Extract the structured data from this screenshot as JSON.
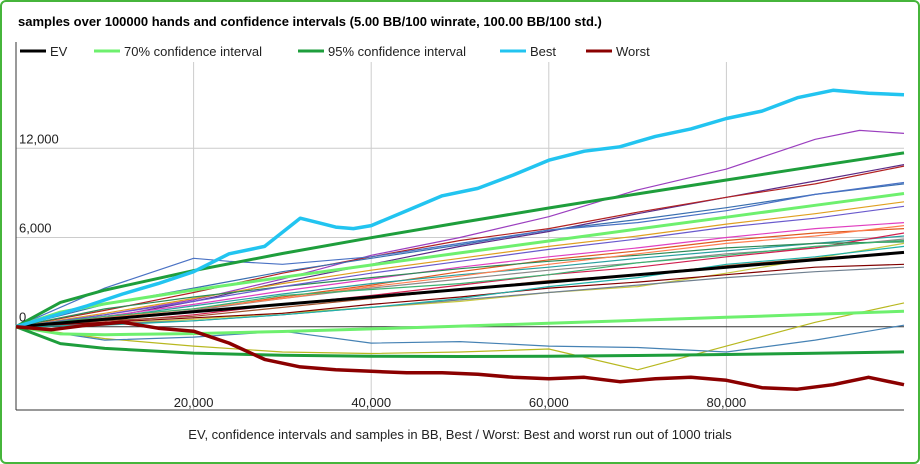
{
  "chart_data": {
    "type": "line",
    "title": "samples over 100000 hands and confidence intervals (5.00 BB/100 winrate, 100.00 BB/100 std.)",
    "caption": "EV, confidence intervals and samples in BB, Best / Worst: Best and worst run out of 1000 trials",
    "xlim": [
      0,
      100000
    ],
    "ylim": [
      -5600,
      17800
    ],
    "x_ticks": [
      {
        "value": 20000,
        "label": "20,000"
      },
      {
        "value": 40000,
        "label": "40,000"
      },
      {
        "value": 60000,
        "label": "60,000"
      },
      {
        "value": 80000,
        "label": "80,000"
      }
    ],
    "y_ticks": [
      {
        "value": 0,
        "label": "0"
      },
      {
        "value": 6000,
        "label": "6,000"
      },
      {
        "value": 12000,
        "label": "12,000"
      }
    ],
    "legend_position": "top",
    "legend": [
      {
        "label": "EV",
        "color": "#000000"
      },
      {
        "label": "70% confidence interval",
        "color": "#6ef06e"
      },
      {
        "label": "95% confidence interval",
        "color": "#1e9e3c"
      },
      {
        "label": "Best",
        "color": "#22c4f0"
      },
      {
        "label": "Worst",
        "color": "#8b0000"
      }
    ],
    "series": [
      {
        "name": "EV",
        "color": "#000000",
        "width": 3,
        "x": [
          0,
          10000,
          20000,
          30000,
          40000,
          50000,
          60000,
          70000,
          80000,
          90000,
          100000
        ],
        "y": [
          0,
          500,
          1000,
          1500,
          2000,
          2500,
          3000,
          3500,
          4000,
          4500,
          5000
        ]
      },
      {
        "name": "70% confidence interval",
        "color": "#6ef06e",
        "width": 3,
        "x": [
          0,
          5000,
          10000,
          20000,
          30000,
          40000,
          50000,
          60000,
          70000,
          80000,
          90000,
          100000
        ],
        "y": [
          0,
          984,
          1537,
          2466,
          3322,
          4148,
          4961,
          5767,
          6568,
          7367,
          8164,
          8960
        ]
      },
      {
        "name": "70% confidence interval",
        "color": "#6ef06e",
        "width": 3,
        "x": [
          0,
          5000,
          10000,
          20000,
          30000,
          40000,
          50000,
          60000,
          70000,
          80000,
          90000,
          100000
        ],
        "y": [
          0,
          -484,
          -537,
          -466,
          -322,
          -148,
          39,
          233,
          432,
          633,
          836,
          1040
        ]
      },
      {
        "name": "95% confidence interval",
        "color": "#1e9e3c",
        "width": 3,
        "x": [
          0,
          5000,
          10000,
          20000,
          30000,
          40000,
          50000,
          60000,
          70000,
          80000,
          90000,
          100000
        ],
        "y": [
          0,
          1636,
          2460,
          3771,
          4920,
          5985,
          7001,
          7980,
          8933,
          9865,
          10785,
          11690
        ]
      },
      {
        "name": "95% confidence interval",
        "color": "#1e9e3c",
        "width": 3,
        "x": [
          0,
          5000,
          10000,
          20000,
          30000,
          40000,
          50000,
          60000,
          70000,
          80000,
          90000,
          100000
        ],
        "y": [
          0,
          -1136,
          -1460,
          -1771,
          -1920,
          -1985,
          -2001,
          -1980,
          -1933,
          -1865,
          -1785,
          -1690
        ]
      },
      {
        "name": "Best",
        "color": "#22c4f0",
        "width": 3.5,
        "x": [
          0,
          4000,
          8000,
          12000,
          16000,
          20000,
          24000,
          28000,
          32000,
          34000,
          36000,
          38000,
          40000,
          44000,
          48000,
          52000,
          56000,
          60000,
          64000,
          68000,
          72000,
          76000,
          80000,
          84000,
          88000,
          92000,
          96000,
          100000
        ],
        "y": [
          0,
          700,
          1400,
          2200,
          2900,
          3700,
          4900,
          5400,
          7300,
          7000,
          6700,
          6600,
          6800,
          7800,
          8800,
          9300,
          10200,
          11200,
          11800,
          12100,
          12800,
          13300,
          14000,
          14500,
          15400,
          15900,
          15700,
          15600
        ]
      },
      {
        "name": "Worst",
        "color": "#8b0000",
        "width": 3.5,
        "x": [
          0,
          4000,
          8000,
          12000,
          16000,
          20000,
          24000,
          28000,
          32000,
          36000,
          40000,
          44000,
          48000,
          52000,
          56000,
          60000,
          64000,
          68000,
          72000,
          76000,
          80000,
          84000,
          88000,
          92000,
          96000,
          100000
        ],
        "y": [
          0,
          -200,
          100,
          300,
          -100,
          -300,
          -1100,
          -2200,
          -2700,
          -2900,
          -3000,
          -3100,
          -3100,
          -3200,
          -3400,
          -3500,
          -3400,
          -3700,
          -3500,
          -3400,
          -3600,
          -4100,
          -4200,
          -3900,
          -3400,
          -3900
        ]
      },
      {
        "name": "",
        "color": "#9b3fbf",
        "width": 1.2,
        "x": [
          0,
          10000,
          20000,
          30000,
          40000,
          50000,
          60000,
          70000,
          80000,
          90000,
          95000,
          100000
        ],
        "y": [
          0,
          800,
          1800,
          3200,
          4800,
          6000,
          7400,
          9200,
          10600,
          12600,
          13200,
          13000
        ]
      },
      {
        "name": "",
        "color": "#5a2a86",
        "width": 1.2,
        "x": [
          0,
          10000,
          20000,
          30000,
          40000,
          50000,
          60000,
          70000,
          80000,
          90000,
          100000
        ],
        "y": [
          0,
          600,
          1700,
          3000,
          4200,
          5400,
          6400,
          7600,
          8700,
          9800,
          10900
        ]
      },
      {
        "name": "",
        "color": "#b22222",
        "width": 1.2,
        "x": [
          0,
          10000,
          20000,
          30000,
          40000,
          50000,
          60000,
          70000,
          80000,
          90000,
          100000
        ],
        "y": [
          0,
          1100,
          2300,
          3600,
          4700,
          5800,
          6600,
          7700,
          8700,
          9600,
          10800
        ]
      },
      {
        "name": "",
        "color": "#3a6fb0",
        "width": 1.2,
        "x": [
          0,
          10000,
          20000,
          30000,
          40000,
          50000,
          60000,
          70000,
          80000,
          90000,
          100000
        ],
        "y": [
          0,
          1500,
          2600,
          3700,
          4600,
          5500,
          6500,
          7200,
          8000,
          8900,
          9600
        ]
      },
      {
        "name": "",
        "color": "#e0a020",
        "width": 1.2,
        "x": [
          0,
          10000,
          20000,
          30000,
          40000,
          50000,
          60000,
          70000,
          80000,
          90000,
          100000
        ],
        "y": [
          0,
          900,
          1900,
          2900,
          3800,
          4600,
          5400,
          6100,
          6900,
          7600,
          8400
        ]
      },
      {
        "name": "",
        "color": "#e040c0",
        "width": 1.2,
        "x": [
          0,
          10000,
          20000,
          30000,
          40000,
          50000,
          60000,
          70000,
          80000,
          90000,
          100000
        ],
        "y": [
          0,
          700,
          1500,
          2400,
          3200,
          4000,
          4700,
          5300,
          6000,
          6600,
          7000
        ]
      },
      {
        "name": "",
        "color": "#e05a20",
        "width": 1.2,
        "x": [
          0,
          10000,
          20000,
          30000,
          40000,
          50000,
          60000,
          70000,
          80000,
          90000,
          100000
        ],
        "y": [
          0,
          400,
          1100,
          2000,
          2800,
          3700,
          4500,
          5100,
          5800,
          6300,
          6600
        ]
      },
      {
        "name": "",
        "color": "#2aa0a0",
        "width": 1.2,
        "x": [
          0,
          10000,
          20000,
          30000,
          40000,
          50000,
          60000,
          70000,
          80000,
          90000,
          100000
        ],
        "y": [
          0,
          600,
          1400,
          2200,
          2900,
          3500,
          4000,
          4600,
          5100,
          5600,
          6100
        ]
      },
      {
        "name": "",
        "color": "#c8c840",
        "width": 1.2,
        "x": [
          0,
          10000,
          20000,
          30000,
          40000,
          50000,
          60000,
          70000,
          80000,
          90000,
          100000
        ],
        "y": [
          0,
          200,
          500,
          900,
          1300,
          1700,
          2300,
          2700,
          3600,
          4600,
          5600
        ]
      },
      {
        "name": "",
        "color": "#8a8a8a",
        "width": 1.2,
        "x": [
          0,
          10000,
          20000,
          30000,
          40000,
          50000,
          60000,
          70000,
          80000,
          90000,
          100000
        ],
        "y": [
          0,
          500,
          1100,
          1900,
          2600,
          3200,
          3800,
          4300,
          4900,
          5300,
          5900
        ]
      },
      {
        "name": "",
        "color": "#d02050",
        "width": 1.2,
        "x": [
          0,
          10000,
          20000,
          30000,
          40000,
          50000,
          60000,
          70000,
          80000,
          90000,
          100000
        ],
        "y": [
          0,
          300,
          800,
          1500,
          2100,
          2800,
          3500,
          4000,
          4700,
          5300,
          6300
        ]
      },
      {
        "name": "",
        "color": "#a0522d",
        "width": 1.2,
        "x": [
          0,
          10000,
          20000,
          30000,
          40000,
          50000,
          60000,
          70000,
          80000,
          90000,
          100000
        ],
        "y": [
          0,
          400,
          700,
          1300,
          1900,
          2500,
          3100,
          3500,
          4100,
          4600,
          5000
        ]
      },
      {
        "name": "",
        "color": "#2e8b57",
        "width": 1.2,
        "x": [
          0,
          10000,
          20000,
          30000,
          40000,
          50000,
          60000,
          70000,
          80000,
          90000,
          100000
        ],
        "y": [
          0,
          1200,
          2000,
          2700,
          3300,
          3900,
          4400,
          4800,
          5300,
          5600,
          5700
        ]
      },
      {
        "name": "",
        "color": "#ff7f50",
        "width": 1.2,
        "x": [
          0,
          10000,
          20000,
          30000,
          40000,
          50000,
          60000,
          70000,
          80000,
          90000,
          100000
        ],
        "y": [
          0,
          600,
          1200,
          1900,
          2700,
          3400,
          4200,
          4900,
          5600,
          6100,
          6800
        ]
      },
      {
        "name": "",
        "color": "#6a5acd",
        "width": 1.2,
        "x": [
          0,
          10000,
          20000,
          30000,
          40000,
          50000,
          60000,
          70000,
          80000,
          90000,
          100000
        ],
        "y": [
          0,
          800,
          1700,
          2700,
          3600,
          4400,
          5200,
          5900,
          6700,
          7300,
          8100
        ]
      },
      {
        "name": "",
        "color": "#708090",
        "width": 1.2,
        "x": [
          0,
          10000,
          20000,
          30000,
          40000,
          50000,
          60000,
          70000,
          80000,
          90000,
          100000
        ],
        "y": [
          0,
          200,
          400,
          800,
          1300,
          1800,
          2300,
          2800,
          3300,
          3700,
          4000
        ]
      },
      {
        "name": "",
        "color": "#800000",
        "width": 1.2,
        "x": [
          0,
          10000,
          20000,
          30000,
          40000,
          50000,
          60000,
          70000,
          80000,
          90000,
          100000
        ],
        "y": [
          0,
          300,
          600,
          900,
          1500,
          2000,
          2600,
          3000,
          3500,
          4000,
          4200
        ]
      },
      {
        "name": "",
        "color": "#20b2aa",
        "width": 1.2,
        "x": [
          0,
          10000,
          20000,
          30000,
          40000,
          50000,
          60000,
          70000,
          80000,
          90000,
          100000
        ],
        "y": [
          0,
          100,
          400,
          800,
          1300,
          1900,
          2700,
          3300,
          4200,
          4700,
          5400
        ]
      },
      {
        "name": "",
        "color": "#b8b820",
        "width": 1.2,
        "x": [
          0,
          10000,
          20000,
          30000,
          40000,
          50000,
          60000,
          70000,
          80000,
          90000,
          100000
        ],
        "y": [
          0,
          -800,
          -1300,
          -1700,
          -1800,
          -1700,
          -1500,
          -2900,
          -1300,
          300,
          1600
        ]
      },
      {
        "name": "",
        "color": "#4682b4",
        "width": 1.2,
        "x": [
          0,
          10000,
          20000,
          30000,
          40000,
          50000,
          60000,
          70000,
          80000,
          90000,
          100000
        ],
        "y": [
          0,
          -900,
          -700,
          -300,
          -1100,
          -1000,
          -1300,
          -1400,
          -1700,
          -900,
          100
        ]
      },
      {
        "name": "",
        "color": "#3cb371",
        "width": 1.2,
        "x": [
          0,
          10000,
          20000,
          30000,
          40000,
          50000,
          60000,
          70000,
          80000,
          90000,
          100000
        ],
        "y": [
          0,
          700,
          1200,
          2100,
          2500,
          2900,
          3500,
          4300,
          4800,
          5400,
          5800
        ]
      },
      {
        "name": "",
        "color": "#4a72c4",
        "width": 1.2,
        "x": [
          0,
          10000,
          20000,
          24000,
          30000,
          40000,
          50000,
          60000,
          70000,
          80000,
          90000,
          100000
        ],
        "y": [
          0,
          2600,
          4600,
          4400,
          4200,
          4700,
          5600,
          6500,
          7000,
          7800,
          8900,
          9700
        ]
      }
    ]
  }
}
